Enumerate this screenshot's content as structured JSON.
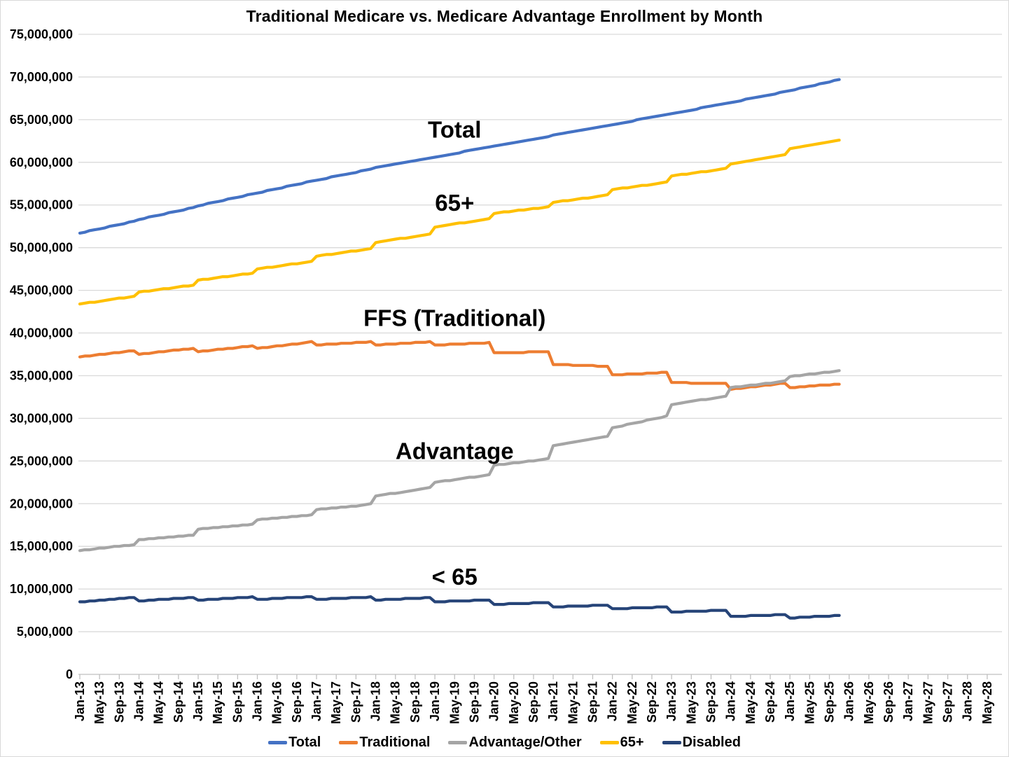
{
  "chart": {
    "background": "#ffffff",
    "gridline_color": "#d9d9d9",
    "axis_color": "#bfbfbf",
    "text_color": "#000000"
  },
  "chart_data": {
    "type": "line",
    "title": "Traditional Medicare vs. Medicare Advantage Enrollment by Month",
    "units": "enrollees (values stored in millions)",
    "x_unit": "month",
    "x_start": "Jan-2013",
    "x_data_end": "Nov-2025",
    "x_axis_end": "May-2028",
    "ylim": [
      0,
      75000000
    ],
    "y_ticks": [
      0,
      5000000,
      10000000,
      15000000,
      20000000,
      25000000,
      30000000,
      35000000,
      40000000,
      45000000,
      50000000,
      55000000,
      60000000,
      65000000,
      70000000,
      75000000
    ],
    "grid": "horizontal",
    "legend_position": "bottom",
    "x_tick_every_months": 4,
    "x_tick_labels": [
      "Jan-13",
      "May-13",
      "Sep-13",
      "Jan-14",
      "May-14",
      "Sep-14",
      "Jan-15",
      "May-15",
      "Sep-15",
      "Jan-16",
      "May-16",
      "Sep-16",
      "Jan-17",
      "May-17",
      "Sep-17",
      "Jan-18",
      "May-18",
      "Sep-18",
      "Jan-19",
      "May-19",
      "Sep-19",
      "Jan-20",
      "May-20",
      "Sep-20",
      "Jan-21",
      "May-21",
      "Sep-21",
      "Jan-22",
      "May-22",
      "Sep-22",
      "Jan-23",
      "May-23",
      "Sep-23",
      "Jan-24",
      "May-24",
      "Sep-24",
      "Jan-25",
      "May-25",
      "Sep-25",
      "Jan-26",
      "May-26",
      "Sep-26",
      "Jan-27",
      "May-27",
      "Sep-27",
      "Jan-28",
      "May-28"
    ],
    "series": [
      {
        "name": "Total",
        "color": "#4472C4",
        "values_millions": [
          51.7,
          51.8,
          52.0,
          52.1,
          52.2,
          52.3,
          52.5,
          52.6,
          52.7,
          52.8,
          53.0,
          53.1,
          53.3,
          53.4,
          53.6,
          53.7,
          53.8,
          53.9,
          54.1,
          54.2,
          54.3,
          54.4,
          54.6,
          54.7,
          54.9,
          55.0,
          55.2,
          55.3,
          55.4,
          55.5,
          55.7,
          55.8,
          55.9,
          56.0,
          56.2,
          56.3,
          56.4,
          56.5,
          56.7,
          56.8,
          56.9,
          57.0,
          57.2,
          57.3,
          57.4,
          57.5,
          57.7,
          57.8,
          57.9,
          58.0,
          58.1,
          58.3,
          58.4,
          58.5,
          58.6,
          58.7,
          58.8,
          59.0,
          59.1,
          59.2,
          59.4,
          59.5,
          59.6,
          59.7,
          59.8,
          59.9,
          60.0,
          60.1,
          60.2,
          60.3,
          60.4,
          60.5,
          60.6,
          60.7,
          60.8,
          60.9,
          61.0,
          61.1,
          61.3,
          61.4,
          61.5,
          61.6,
          61.7,
          61.8,
          61.9,
          62.0,
          62.1,
          62.2,
          62.3,
          62.4,
          62.5,
          62.6,
          62.7,
          62.8,
          62.9,
          63.0,
          63.2,
          63.3,
          63.4,
          63.5,
          63.6,
          63.7,
          63.8,
          63.9,
          64.0,
          64.1,
          64.2,
          64.3,
          64.4,
          64.5,
          64.6,
          64.7,
          64.8,
          65.0,
          65.1,
          65.2,
          65.3,
          65.4,
          65.5,
          65.6,
          65.7,
          65.8,
          65.9,
          66.0,
          66.1,
          66.2,
          66.4,
          66.5,
          66.6,
          66.7,
          66.8,
          66.9,
          67.0,
          67.1,
          67.2,
          67.4,
          67.5,
          67.6,
          67.7,
          67.8,
          67.9,
          68.0,
          68.2,
          68.3,
          68.4,
          68.5,
          68.7,
          68.8,
          68.9,
          69.0,
          69.2,
          69.3,
          69.4,
          69.6,
          69.7
        ]
      },
      {
        "name": "Traditional",
        "color": "#ED7D31",
        "values_millions": [
          37.2,
          37.3,
          37.3,
          37.4,
          37.5,
          37.5,
          37.6,
          37.7,
          37.7,
          37.8,
          37.9,
          37.9,
          37.5,
          37.6,
          37.6,
          37.7,
          37.8,
          37.8,
          37.9,
          38.0,
          38.0,
          38.1,
          38.1,
          38.2,
          37.8,
          37.9,
          37.9,
          38.0,
          38.1,
          38.1,
          38.2,
          38.2,
          38.3,
          38.4,
          38.4,
          38.5,
          38.2,
          38.3,
          38.3,
          38.4,
          38.5,
          38.5,
          38.6,
          38.7,
          38.7,
          38.8,
          38.9,
          39.0,
          38.6,
          38.6,
          38.7,
          38.7,
          38.7,
          38.8,
          38.8,
          38.8,
          38.9,
          38.9,
          38.9,
          39.0,
          38.6,
          38.6,
          38.7,
          38.7,
          38.7,
          38.8,
          38.8,
          38.8,
          38.9,
          38.9,
          38.9,
          39.0,
          38.6,
          38.6,
          38.6,
          38.7,
          38.7,
          38.7,
          38.7,
          38.8,
          38.8,
          38.8,
          38.8,
          38.9,
          37.7,
          37.7,
          37.7,
          37.7,
          37.7,
          37.7,
          37.7,
          37.8,
          37.8,
          37.8,
          37.8,
          37.8,
          36.3,
          36.3,
          36.3,
          36.3,
          36.2,
          36.2,
          36.2,
          36.2,
          36.2,
          36.1,
          36.1,
          36.1,
          35.1,
          35.1,
          35.1,
          35.2,
          35.2,
          35.2,
          35.2,
          35.3,
          35.3,
          35.3,
          35.4,
          35.4,
          34.2,
          34.2,
          34.2,
          34.2,
          34.1,
          34.1,
          34.1,
          34.1,
          34.1,
          34.1,
          34.1,
          34.1,
          33.4,
          33.5,
          33.5,
          33.6,
          33.7,
          33.7,
          33.8,
          33.9,
          33.9,
          34.0,
          34.1,
          34.1,
          33.6,
          33.6,
          33.7,
          33.7,
          33.8,
          33.8,
          33.9,
          33.9,
          33.9,
          34.0,
          34.0
        ]
      },
      {
        "name": "Advantage/Other",
        "color": "#A5A5A5",
        "values_millions": [
          14.5,
          14.6,
          14.6,
          14.7,
          14.8,
          14.8,
          14.9,
          15.0,
          15.0,
          15.1,
          15.1,
          15.2,
          15.8,
          15.8,
          15.9,
          15.9,
          16.0,
          16.0,
          16.1,
          16.1,
          16.2,
          16.2,
          16.3,
          16.3,
          17.0,
          17.1,
          17.1,
          17.2,
          17.2,
          17.3,
          17.3,
          17.4,
          17.4,
          17.5,
          17.5,
          17.6,
          18.1,
          18.2,
          18.2,
          18.3,
          18.3,
          18.4,
          18.4,
          18.5,
          18.5,
          18.6,
          18.6,
          18.7,
          19.3,
          19.4,
          19.4,
          19.5,
          19.5,
          19.6,
          19.6,
          19.7,
          19.7,
          19.8,
          19.9,
          20.0,
          20.9,
          21.0,
          21.1,
          21.2,
          21.2,
          21.3,
          21.4,
          21.5,
          21.6,
          21.7,
          21.8,
          21.9,
          22.5,
          22.6,
          22.7,
          22.7,
          22.8,
          22.9,
          23.0,
          23.1,
          23.1,
          23.2,
          23.3,
          23.4,
          24.5,
          24.6,
          24.6,
          24.7,
          24.8,
          24.8,
          24.9,
          25.0,
          25.0,
          25.1,
          25.2,
          25.3,
          26.8,
          26.9,
          27.0,
          27.1,
          27.2,
          27.3,
          27.4,
          27.5,
          27.6,
          27.7,
          27.8,
          27.9,
          28.9,
          29.0,
          29.1,
          29.3,
          29.4,
          29.5,
          29.6,
          29.8,
          29.9,
          30.0,
          30.1,
          30.3,
          31.6,
          31.7,
          31.8,
          31.9,
          32.0,
          32.1,
          32.2,
          32.2,
          32.3,
          32.4,
          32.5,
          32.6,
          33.6,
          33.7,
          33.7,
          33.8,
          33.9,
          33.9,
          34.0,
          34.1,
          34.1,
          34.2,
          34.3,
          34.4,
          34.9,
          35.0,
          35.0,
          35.1,
          35.2,
          35.2,
          35.3,
          35.4,
          35.4,
          35.5,
          35.6
        ]
      },
      {
        "name": "65+",
        "color": "#FFC000",
        "values_millions": [
          43.4,
          43.5,
          43.6,
          43.6,
          43.7,
          43.8,
          43.9,
          44.0,
          44.1,
          44.1,
          44.2,
          44.3,
          44.8,
          44.9,
          44.9,
          45.0,
          45.1,
          45.2,
          45.2,
          45.3,
          45.4,
          45.5,
          45.5,
          45.6,
          46.2,
          46.3,
          46.3,
          46.4,
          46.5,
          46.6,
          46.6,
          46.7,
          46.8,
          46.9,
          46.9,
          47.0,
          47.5,
          47.6,
          47.7,
          47.7,
          47.8,
          47.9,
          48.0,
          48.1,
          48.1,
          48.2,
          48.3,
          48.4,
          49.0,
          49.1,
          49.2,
          49.2,
          49.3,
          49.4,
          49.5,
          49.6,
          49.6,
          49.7,
          49.8,
          49.9,
          50.6,
          50.7,
          50.8,
          50.9,
          51.0,
          51.1,
          51.1,
          51.2,
          51.3,
          51.4,
          51.5,
          51.6,
          52.4,
          52.5,
          52.6,
          52.7,
          52.8,
          52.9,
          52.9,
          53.0,
          53.1,
          53.2,
          53.3,
          53.4,
          54.0,
          54.1,
          54.2,
          54.2,
          54.3,
          54.4,
          54.4,
          54.5,
          54.6,
          54.6,
          54.7,
          54.8,
          55.3,
          55.4,
          55.5,
          55.5,
          55.6,
          55.7,
          55.8,
          55.8,
          55.9,
          56.0,
          56.1,
          56.2,
          56.8,
          56.9,
          57.0,
          57.0,
          57.1,
          57.2,
          57.3,
          57.3,
          57.4,
          57.5,
          57.6,
          57.7,
          58.4,
          58.5,
          58.6,
          58.6,
          58.7,
          58.8,
          58.9,
          58.9,
          59.0,
          59.1,
          59.2,
          59.3,
          59.8,
          59.9,
          60.0,
          60.1,
          60.2,
          60.3,
          60.4,
          60.5,
          60.6,
          60.7,
          60.8,
          60.9,
          61.6,
          61.7,
          61.8,
          61.9,
          62.0,
          62.1,
          62.2,
          62.3,
          62.4,
          62.5,
          62.6
        ]
      },
      {
        "name": "Disabled",
        "color": "#264478",
        "values_millions": [
          8.5,
          8.5,
          8.6,
          8.6,
          8.7,
          8.7,
          8.8,
          8.8,
          8.9,
          8.9,
          9.0,
          9.0,
          8.6,
          8.6,
          8.7,
          8.7,
          8.8,
          8.8,
          8.8,
          8.9,
          8.9,
          8.9,
          9.0,
          9.0,
          8.7,
          8.7,
          8.8,
          8.8,
          8.8,
          8.9,
          8.9,
          8.9,
          9.0,
          9.0,
          9.0,
          9.1,
          8.8,
          8.8,
          8.8,
          8.9,
          8.9,
          8.9,
          9.0,
          9.0,
          9.0,
          9.0,
          9.1,
          9.1,
          8.8,
          8.8,
          8.8,
          8.9,
          8.9,
          8.9,
          8.9,
          9.0,
          9.0,
          9.0,
          9.0,
          9.1,
          8.7,
          8.7,
          8.8,
          8.8,
          8.8,
          8.8,
          8.9,
          8.9,
          8.9,
          8.9,
          9.0,
          9.0,
          8.5,
          8.5,
          8.5,
          8.6,
          8.6,
          8.6,
          8.6,
          8.6,
          8.7,
          8.7,
          8.7,
          8.7,
          8.2,
          8.2,
          8.2,
          8.3,
          8.3,
          8.3,
          8.3,
          8.3,
          8.4,
          8.4,
          8.4,
          8.4,
          7.9,
          7.9,
          7.9,
          8.0,
          8.0,
          8.0,
          8.0,
          8.0,
          8.1,
          8.1,
          8.1,
          8.1,
          7.7,
          7.7,
          7.7,
          7.7,
          7.8,
          7.8,
          7.8,
          7.8,
          7.8,
          7.9,
          7.9,
          7.9,
          7.3,
          7.3,
          7.3,
          7.4,
          7.4,
          7.4,
          7.4,
          7.4,
          7.5,
          7.5,
          7.5,
          7.5,
          6.8,
          6.8,
          6.8,
          6.8,
          6.9,
          6.9,
          6.9,
          6.9,
          6.9,
          7.0,
          7.0,
          7.0,
          6.6,
          6.6,
          6.7,
          6.7,
          6.7,
          6.8,
          6.8,
          6.8,
          6.8,
          6.9,
          6.9
        ]
      }
    ],
    "annotations": [
      {
        "text": "Total",
        "month": 76,
        "value_millions": 63.9
      },
      {
        "text": "65+",
        "month": 76,
        "value_millions": 55.3
      },
      {
        "text": "FFS (Traditional)",
        "month": 76,
        "value_millions": 41.8
      },
      {
        "text": "Advantage",
        "month": 76,
        "value_millions": 26.2
      },
      {
        "text": "< 65",
        "month": 76,
        "value_millions": 11.5
      }
    ],
    "legend": [
      "Total",
      "Traditional",
      "Advantage/Other",
      "65+",
      "Disabled"
    ]
  }
}
